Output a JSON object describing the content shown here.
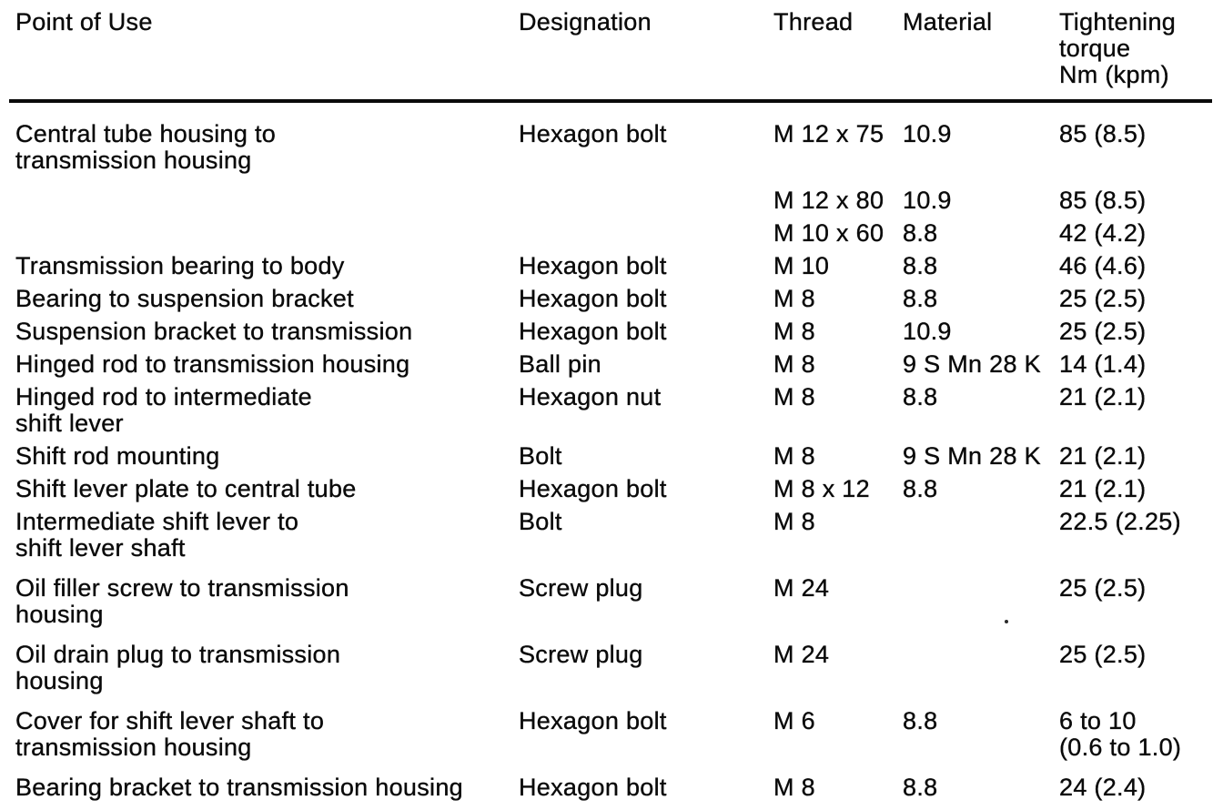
{
  "colors": {
    "ink": "#0a0a0a",
    "paper": "#ffffff"
  },
  "table": {
    "columns": [
      {
        "key": "point_of_use",
        "label": "Point of Use"
      },
      {
        "key": "designation",
        "label": "Designation"
      },
      {
        "key": "thread",
        "label": "Thread"
      },
      {
        "key": "material",
        "label": "Material"
      },
      {
        "key": "torque",
        "label": "Tightening\ntorque\nNm (kpm)"
      }
    ],
    "rows": [
      {
        "point_of_use": "Central tube housing to\ntransmission housing",
        "designation": "Hexagon bolt",
        "thread": "M 12 x 75",
        "material": "10.9",
        "torque": "85 (8.5)",
        "gap_after": true
      },
      {
        "point_of_use": "",
        "designation": "",
        "thread": "M 12 x 80",
        "material": "10.9",
        "torque": "85 (8.5)",
        "gap_after": false
      },
      {
        "point_of_use": "",
        "designation": "",
        "thread": "M 10 x 60",
        "material": "8.8",
        "torque": "42 (4.2)",
        "gap_after": false
      },
      {
        "point_of_use": "Transmission bearing to body",
        "designation": "Hexagon bolt",
        "thread": "M 10",
        "material": "8.8",
        "torque": "46 (4.6)",
        "gap_after": false
      },
      {
        "point_of_use": "Bearing to suspension bracket",
        "designation": "Hexagon bolt",
        "thread": "M 8",
        "material": "8.8",
        "torque": "25 (2.5)",
        "gap_after": false
      },
      {
        "point_of_use": "Suspension bracket to transmission",
        "designation": "Hexagon bolt",
        "thread": "M 8",
        "material": "10.9",
        "torque": "25 (2.5)",
        "gap_after": false
      },
      {
        "point_of_use": "Hinged rod to transmission housing",
        "designation": "Ball pin",
        "thread": "M 8",
        "material": "9 S Mn 28 K",
        "torque": "14 (1.4)",
        "gap_after": false
      },
      {
        "point_of_use": "Hinged rod to intermediate\nshift lever",
        "designation": "Hexagon nut",
        "thread": "M 8",
        "material": "8.8",
        "torque": "21 (2.1)",
        "gap_after": false
      },
      {
        "point_of_use": "Shift rod mounting",
        "designation": "Bolt",
        "thread": "M 8",
        "material": "9 S Mn 28 K",
        "torque": "21 (2.1)",
        "gap_after": false
      },
      {
        "point_of_use": "Shift lever plate to central tube",
        "designation": "Hexagon bolt",
        "thread": "M 8 x 12",
        "material": "8.8",
        "torque": "21 (2.1)",
        "gap_after": false
      },
      {
        "point_of_use": "Intermediate shift lever to\nshift lever shaft",
        "designation": "Bolt",
        "thread": "M 8",
        "material": "",
        "torque": "22.5 (2.25)",
        "gap_after": true
      },
      {
        "point_of_use": "Oil filler screw to transmission\nhousing",
        "designation": "Screw plug",
        "thread": "M 24",
        "material": "",
        "torque": "25 (2.5)",
        "gap_after": true
      },
      {
        "point_of_use": "Oil drain plug to transmission\nhousing",
        "designation": "Screw plug",
        "thread": "M 24",
        "material": "",
        "torque": "25 (2.5)",
        "gap_after": true
      },
      {
        "point_of_use": "Cover for shift lever shaft to\ntransmission housing",
        "designation": "Hexagon bolt",
        "thread": "M 6",
        "material": "8.8",
        "torque": "6 to 10\n(0.6 to 1.0)",
        "gap_after": true
      },
      {
        "point_of_use": "Bearing bracket to transmission housing",
        "designation": "Hexagon bolt",
        "thread": "M 8",
        "material": "8.8",
        "torque": "24 (2.4)",
        "gap_after": false
      }
    ]
  }
}
